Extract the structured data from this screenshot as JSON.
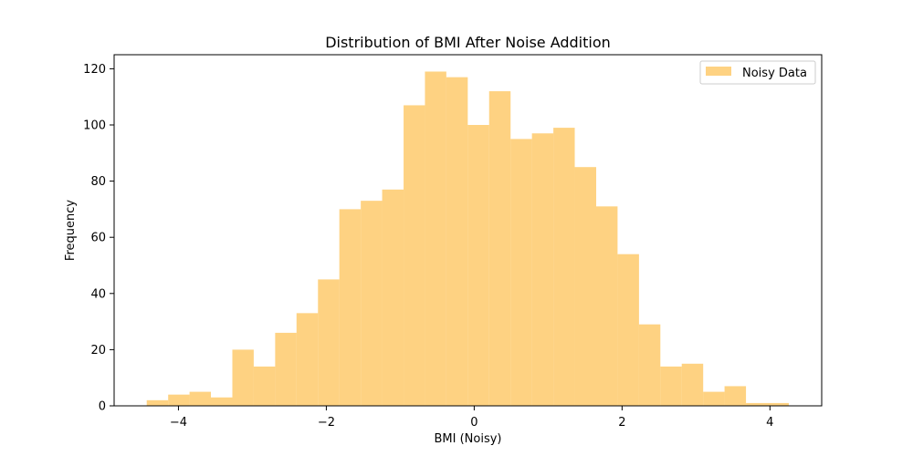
{
  "chart_data": {
    "type": "bar",
    "title": "Distribution of BMI After Noise Addition",
    "xlabel": "BMI (Noisy)",
    "ylabel": "Frequency",
    "xlim": [
      -4.87,
      4.7
    ],
    "ylim": [
      0,
      125
    ],
    "xticks": [
      -4,
      -2,
      0,
      2,
      4
    ],
    "xtick_labels": [
      "−4",
      "−2",
      "0",
      "2",
      "4"
    ],
    "yticks": [
      0,
      20,
      40,
      60,
      80,
      100,
      120
    ],
    "ytick_labels": [
      "0",
      "20",
      "40",
      "60",
      "80",
      "100",
      "120"
    ],
    "bin_edges": [
      -4.429,
      -4.139,
      -3.85,
      -3.561,
      -3.271,
      -2.982,
      -2.692,
      -2.403,
      -2.113,
      -1.824,
      -1.534,
      -1.245,
      -0.955,
      -0.666,
      -0.377,
      -0.087,
      0.202,
      0.492,
      0.781,
      1.071,
      1.36,
      1.65,
      1.939,
      2.229,
      2.518,
      2.807,
      3.097,
      3.386,
      3.676,
      3.965,
      4.255
    ],
    "values": [
      2,
      4,
      5,
      3,
      20,
      14,
      26,
      33,
      45,
      70,
      73,
      77,
      107,
      119,
      117,
      100,
      112,
      95,
      97,
      99,
      85,
      71,
      54,
      29,
      14,
      15,
      5,
      7,
      1,
      1
    ],
    "bar_color": "#fdbf4d",
    "bar_opacity": 0.7,
    "legend": {
      "label": "Noisy Data",
      "position": "top-right"
    },
    "grid": false
  }
}
